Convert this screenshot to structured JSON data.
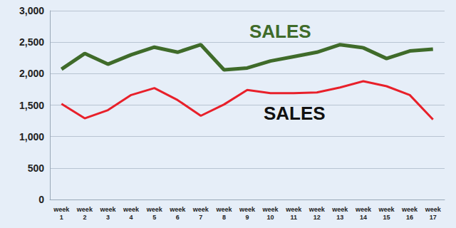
{
  "chart_data": {
    "type": "line",
    "categories": [
      "week 1",
      "week 2",
      "week 3",
      "week 4",
      "week 5",
      "week 6",
      "week 7",
      "week 8",
      "week 9",
      "week 10",
      "week 11",
      "week 12",
      "week 13",
      "week 14",
      "week 15",
      "week 16",
      "week 17"
    ],
    "series": [
      {
        "name": "SALES",
        "color": "#3f6b2a",
        "values": [
          2070,
          2320,
          2150,
          2300,
          2420,
          2340,
          2460,
          2060,
          2090,
          2200,
          2270,
          2340,
          2460,
          2410,
          2240,
          2360,
          2390
        ]
      },
      {
        "name": "SALES",
        "color": "#e8202a",
        "values": [
          1520,
          1290,
          1420,
          1660,
          1770,
          1580,
          1330,
          1510,
          1740,
          1690,
          1690,
          1700,
          1780,
          1880,
          1800,
          1660,
          1270
        ]
      }
    ],
    "ylim": [
      0,
      3000
    ],
    "yticks": [
      0,
      500,
      1000,
      1500,
      2000,
      2500,
      3000
    ],
    "grid": true
  }
}
